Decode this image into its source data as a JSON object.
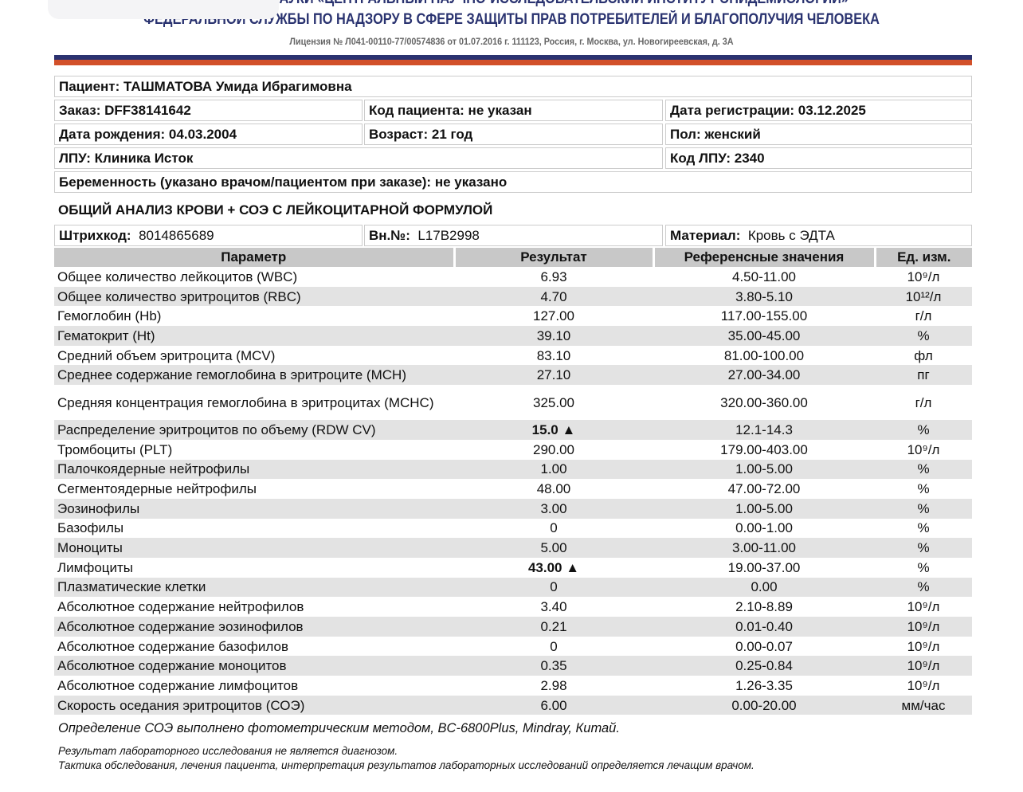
{
  "header": {
    "line1": "УЧРЕЖДЕНИЕ НАУКИ «ЦЕНТРАЛЬНЫЙ НАУЧНО-ИССЛЕДОВАТЕЛЬСКИЙ ИНСТИТУТ ЭПИДЕМИОЛОГИИ»",
    "line2": "ФЕДЕРАЛЬНОЙ СЛУЖБЫ ПО НАДЗОРУ В СФЕРЕ ЗАЩИТЫ ПРАВ ПОТРЕБИТЕЛЕЙ И БЛАГОПОЛУЧИЯ ЧЕЛОВЕКА",
    "license": "Лицензия № Л041-00110-77/00574836 от 01.07.2016 г. 111123, Россия, г. Москва, ул. Новогиреевская, д. 3А",
    "colors": {
      "navy": "#2b3270",
      "red": "#d2502a"
    }
  },
  "patient": {
    "name": "Пациент: ТАШМАТОВА Умида Ибрагимовна",
    "order": "Заказ: DFF38141642",
    "patient_code": "Код пациента: не указан",
    "reg_date": "Дата регистрации: 03.12.2025",
    "birth": "Дата рождения: 04.03.2004",
    "age": "Возраст: 21 год",
    "sex": "Пол: женский",
    "lpu": "ЛПУ: Клиника Исток",
    "lpu_code": "Код ЛПУ: 2340",
    "pregnancy": "Беременность (указано врачом/пациентом при заказе): не указано"
  },
  "test": {
    "title": "ОБЩИЙ АНАЛИЗ КРОВИ + СОЭ С ЛЕЙКОЦИТАРНОЙ ФОРМУЛОЙ",
    "barcode_label": "Штрихкод:",
    "barcode": "8014865689",
    "int_label": "Вн.№:",
    "int_no": "L17B2998",
    "material_label": "Материал:",
    "material": "Кровь с ЭДТА"
  },
  "table": {
    "headers": [
      "Параметр",
      "Результат",
      "Референсные значения",
      "Ед. изм."
    ],
    "rows": [
      [
        "Общее количество лейкоцитов (WBC)",
        "6.93",
        "4.50-11.00",
        "10⁹/л"
      ],
      [
        "Общее количество эритроцитов (RBC)",
        "4.70",
        "3.80-5.10",
        "10¹²/л"
      ],
      [
        "Гемоглобин (Hb)",
        "127.00",
        "117.00-155.00",
        "г/л"
      ],
      [
        "Гематокрит (Ht)",
        "39.10",
        "35.00-45.00",
        "%"
      ],
      [
        "Средний объем эритроцита (MCV)",
        "83.10",
        "81.00-100.00",
        "фл"
      ],
      [
        "Среднее содержание гемоглобина в эритроците (MCH)",
        "27.10",
        "27.00-34.00",
        "пг"
      ],
      [
        "Средняя концентрация гемоглобина в эритроцитах (MCHC)",
        "325.00",
        "320.00-360.00",
        "г/л"
      ],
      [
        "Распределение эритроцитов по объему (RDW CV)",
        "15.0 ▲",
        "12.1-14.3",
        "%"
      ],
      [
        "Тромбоциты (PLT)",
        "290.00",
        "179.00-403.00",
        "10⁹/л"
      ],
      [
        "Палочкоядерные нейтрофилы",
        "1.00",
        "1.00-5.00",
        "%"
      ],
      [
        "Сегментоядерные нейтрофилы",
        "48.00",
        "47.00-72.00",
        "%"
      ],
      [
        "Эозинофилы",
        "3.00",
        "1.00-5.00",
        "%"
      ],
      [
        "Базофилы",
        "0",
        "0.00-1.00",
        "%"
      ],
      [
        "Моноциты",
        "5.00",
        "3.00-11.00",
        "%"
      ],
      [
        "Лимфоциты",
        "43.00 ▲",
        "19.00-37.00",
        "%"
      ],
      [
        "Плазматические клетки",
        "0",
        "0.00",
        "%"
      ],
      [
        "Абсолютное содержание нейтрофилов",
        "3.40",
        "2.10-8.89",
        "10⁹/л"
      ],
      [
        "Абсолютное содержание эозинофилов",
        "0.21",
        "0.01-0.40",
        "10⁹/л"
      ],
      [
        "Абсолютное содержание базофилов",
        "0",
        "0.00-0.07",
        "10⁹/л"
      ],
      [
        "Абсолютное содержание моноцитов",
        "0.35",
        "0.25-0.84",
        "10⁹/л"
      ],
      [
        "Абсолютное содержание лимфоцитов",
        "2.98",
        "1.26-3.35",
        "10⁹/л"
      ],
      [
        "Скорость оседания эритроцитов (СОЭ)",
        "6.00",
        "0.00-20.00",
        "мм/час"
      ]
    ],
    "flagged": [
      7,
      14
    ]
  },
  "footer": {
    "method": "Определение СОЭ выполнено фотометрическим методом, BC-6800Plus, Mindray, Китай.",
    "disclaimer1": "Результат лабораторного исследования не является диагнозом.",
    "disclaimer2": "Тактика обследования, лечения пациента, интерпретация результатов лабораторных исследований определяется лечащим врачом."
  }
}
